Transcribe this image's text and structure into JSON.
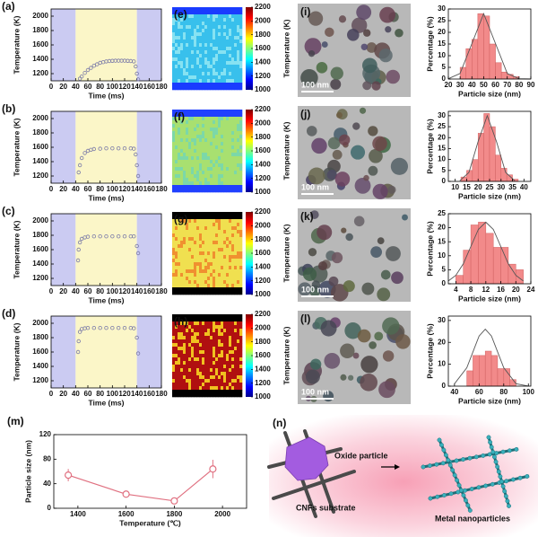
{
  "chart_data": [
    {
      "type": "scatter",
      "panel": "(a)",
      "xlabel": "Time (ms)",
      "ylabel": "Temperature (K)",
      "color": "#7a7aa8",
      "shaded": [
        {
          "range": [
            0,
            40
          ],
          "color": "#cbcbf2"
        },
        {
          "range": [
            40,
            140
          ],
          "color": "#fbf6c8"
        },
        {
          "range": [
            140,
            180
          ],
          "color": "#cbcbf2"
        }
      ],
      "x": [
        47,
        50,
        55,
        60,
        65,
        70,
        75,
        80,
        85,
        90,
        95,
        100,
        105,
        110,
        115,
        120,
        125,
        130,
        135,
        138,
        140,
        142
      ],
      "values": [
        1130,
        1160,
        1210,
        1250,
        1280,
        1310,
        1330,
        1350,
        1360,
        1370,
        1375,
        1378,
        1380,
        1380,
        1380,
        1380,
        1378,
        1375,
        1370,
        1300,
        1200,
        1120
      ],
      "xlim": [
        0,
        180
      ],
      "xticks": [
        0,
        20,
        40,
        60,
        80,
        100,
        120,
        140,
        160,
        180
      ],
      "ylim": [
        1100,
        2100
      ],
      "yticks": [
        1200,
        1400,
        1600,
        1800,
        2000
      ]
    },
    {
      "type": "scatter",
      "panel": "(b)",
      "xlabel": "Time (ms)",
      "ylabel": "Temperature (K)",
      "color": "#7a7aa8",
      "shaded": [
        {
          "range": [
            0,
            40
          ],
          "color": "#cbcbf2"
        },
        {
          "range": [
            40,
            140
          ],
          "color": "#fbf6c8"
        },
        {
          "range": [
            140,
            180
          ],
          "color": "#cbcbf2"
        }
      ],
      "x": [
        45,
        47,
        50,
        55,
        60,
        65,
        70,
        80,
        90,
        100,
        110,
        120,
        130,
        135,
        138,
        140,
        142
      ],
      "values": [
        1250,
        1350,
        1450,
        1520,
        1550,
        1565,
        1575,
        1580,
        1585,
        1585,
        1585,
        1585,
        1585,
        1580,
        1500,
        1350,
        1200
      ],
      "xlim": [
        0,
        180
      ],
      "xticks": [
        0,
        20,
        40,
        60,
        80,
        100,
        120,
        140,
        160,
        180
      ],
      "ylim": [
        1100,
        2100
      ],
      "yticks": [
        1200,
        1400,
        1600,
        1800,
        2000
      ]
    },
    {
      "type": "scatter",
      "panel": "(c)",
      "xlabel": "Time (ms)",
      "ylabel": "Temperature (K)",
      "color": "#7a7aa8",
      "shaded": [
        {
          "range": [
            0,
            40
          ],
          "color": "#cbcbf2"
        },
        {
          "range": [
            40,
            140
          ],
          "color": "#fbf6c8"
        },
        {
          "range": [
            140,
            180
          ],
          "color": "#cbcbf2"
        }
      ],
      "x": [
        44,
        45,
        47,
        50,
        55,
        60,
        70,
        80,
        90,
        100,
        110,
        120,
        130,
        135,
        140,
        142
      ],
      "values": [
        1450,
        1600,
        1700,
        1750,
        1770,
        1780,
        1785,
        1785,
        1785,
        1785,
        1785,
        1785,
        1785,
        1785,
        1650,
        1550
      ],
      "xlim": [
        0,
        180
      ],
      "xticks": [
        0,
        20,
        40,
        60,
        80,
        100,
        120,
        140,
        160,
        180
      ],
      "ylim": [
        1100,
        2100
      ],
      "yticks": [
        1200,
        1400,
        1600,
        1800,
        2000
      ]
    },
    {
      "type": "scatter",
      "panel": "(d)",
      "xlabel": "Time (ms)",
      "ylabel": "Temperature (K)",
      "color": "#7a7aa8",
      "shaded": [
        {
          "range": [
            0,
            40
          ],
          "color": "#cbcbf2"
        },
        {
          "range": [
            40,
            140
          ],
          "color": "#fbf6c8"
        },
        {
          "range": [
            140,
            180
          ],
          "color": "#cbcbf2"
        }
      ],
      "x": [
        44,
        45,
        47,
        50,
        55,
        60,
        70,
        80,
        90,
        100,
        110,
        120,
        130,
        135,
        140,
        142
      ],
      "values": [
        1600,
        1750,
        1880,
        1920,
        1930,
        1935,
        1935,
        1935,
        1935,
        1935,
        1935,
        1935,
        1935,
        1930,
        1800,
        1580
      ],
      "xlim": [
        0,
        180
      ],
      "xticks": [
        0,
        20,
        40,
        60,
        80,
        100,
        120,
        140,
        160,
        180
      ],
      "ylim": [
        1100,
        2100
      ],
      "yticks": [
        1200,
        1400,
        1600,
        1800,
        2000
      ]
    },
    {
      "type": "heatmap",
      "panel": "(e)",
      "zlabel": "Temperature (K)",
      "zlim": [
        1000,
        2200
      ],
      "zticks": [
        1000,
        1200,
        1400,
        1600,
        1800,
        2000,
        2200
      ],
      "color": "#38c0ec",
      "speckle_color": "#86e2f2",
      "edge_color": "#1a3cff"
    },
    {
      "type": "heatmap",
      "panel": "(f)",
      "zlabel": "Temperature (K)",
      "zlim": [
        1000,
        2200
      ],
      "zticks": [
        1000,
        1200,
        1400,
        1600,
        1800,
        2000,
        2200
      ],
      "color": "#a8e070",
      "speckle_color": "#7cd8a8",
      "edge_color": "#2040ff"
    },
    {
      "type": "heatmap",
      "panel": "(g)",
      "zlabel": "Temperature (K)",
      "zlim": [
        1000,
        2200
      ],
      "zticks": [
        1000,
        1200,
        1400,
        1600,
        1800,
        2000,
        2200
      ],
      "color": "#f0e050",
      "speckle_color": "#f09030",
      "edge_color": "#000000"
    },
    {
      "type": "heatmap",
      "panel": "(h)",
      "zlabel": "Temperature (K)",
      "zlim": [
        1000,
        2200
      ],
      "zticks": [
        1000,
        1200,
        1400,
        1600,
        1800,
        2000,
        2200
      ],
      "color": "#b01010",
      "speckle_color": "#f0c020",
      "edge_color": "#000000"
    },
    {
      "type": "histogram",
      "xlabel": "Particle size (nm)",
      "ylabel": "Percentage (%)",
      "color": "#f28a8a",
      "bins": [
        30,
        35,
        40,
        45,
        50,
        55,
        60,
        65,
        70,
        75,
        80
      ],
      "values": [
        5,
        13,
        17,
        28,
        27,
        15,
        7,
        3,
        2,
        1
      ],
      "fit": {
        "x": [
          20,
          30,
          40,
          50,
          60,
          70,
          80,
          90
        ],
        "values": [
          0.1,
          2.4,
          15.2,
          28,
          15.2,
          2.4,
          0.1,
          0
        ],
        "color": "#555555"
      },
      "xlim": [
        20,
        90
      ],
      "xticks": [
        20,
        30,
        40,
        50,
        60,
        70,
        80,
        90
      ],
      "ylim": [
        0,
        30
      ],
      "yticks": [
        0,
        5,
        10,
        15,
        20,
        25,
        30
      ]
    },
    {
      "type": "histogram",
      "xlabel": "Particle size (nm)",
      "ylabel": "Percentage (%)",
      "color": "#f28a8a",
      "bins": [
        12.5,
        15,
        17.5,
        20,
        22.5,
        25,
        27.5,
        30,
        32.5,
        35,
        37.5
      ],
      "values": [
        2,
        5,
        10,
        22,
        31,
        25,
        12,
        6,
        3,
        1
      ],
      "fit": {
        "x": [
          12,
          16,
          20,
          24,
          28,
          32,
          36
        ],
        "values": [
          0.3,
          4.1,
          18.2,
          30,
          18.2,
          4.1,
          0.3
        ],
        "color": "#555555"
      },
      "xlim": [
        7,
        43
      ],
      "xticks": [
        10,
        15,
        20,
        25,
        30,
        35,
        40
      ],
      "ylim": [
        0,
        32
      ],
      "yticks": [
        0,
        5,
        10,
        15,
        20,
        25,
        30
      ]
    },
    {
      "type": "histogram",
      "xlabel": "Particle size (nm)",
      "ylabel": "Percentage (%)",
      "color": "#f28a8a",
      "bins": [
        4,
        6,
        8,
        10,
        12,
        14,
        16,
        18,
        20,
        22
      ],
      "values": [
        3,
        12,
        21,
        22,
        18,
        13,
        13,
        7,
        5
      ],
      "fit": {
        "x": [
          2,
          4,
          6,
          8,
          10,
          12,
          14,
          16,
          18,
          20,
          22
        ],
        "values": [
          1.0,
          3.0,
          7.1,
          13.3,
          19.4,
          22,
          19.4,
          13.3,
          7.1,
          3.0,
          1.0
        ],
        "color": "#555555"
      },
      "xlim": [
        2,
        24
      ],
      "xticks": [
        4,
        8,
        12,
        16,
        20,
        24
      ],
      "ylim": [
        0,
        25
      ],
      "yticks": [
        0,
        5,
        10,
        15,
        20,
        25
      ]
    },
    {
      "type": "histogram",
      "xlabel": "Particle size (nm)",
      "ylabel": "Percentage (%)",
      "color": "#f28a8a",
      "bins": [
        50,
        55,
        60,
        65,
        70,
        75,
        80,
        85,
        90
      ],
      "values": [
        7,
        14,
        14,
        16,
        14,
        8,
        8,
        3
      ],
      "fit": {
        "x": [
          40,
          50,
          60,
          65,
          70,
          80,
          90,
          100
        ],
        "values": [
          1.1,
          8.4,
          22.9,
          26,
          22.9,
          8.4,
          1.1,
          0.06
        ],
        "color": "#555555"
      },
      "xlim": [
        35,
        102
      ],
      "xticks": [
        40,
        60,
        80,
        100
      ],
      "ylim": [
        0,
        32
      ],
      "yticks": [
        0,
        10,
        20,
        30
      ]
    },
    {
      "type": "line",
      "panel": "(m)",
      "xlabel": "Temperature (℃)",
      "ylabel": "Particle size (nm)",
      "color": "#e07080",
      "x": [
        1360,
        1600,
        1800,
        1960
      ],
      "values": [
        54,
        23,
        12,
        64
      ],
      "errors": [
        10,
        5,
        3,
        15
      ],
      "xlim": [
        1300,
        2100
      ],
      "xticks": [
        1400,
        1600,
        1800,
        2000
      ],
      "ylim": [
        0,
        120
      ],
      "yticks": [
        0,
        40,
        80,
        120
      ]
    }
  ],
  "images": [
    {
      "panel": "(i)",
      "scale_bar": "100 nm"
    },
    {
      "panel": "(j)",
      "scale_bar": "100 nm"
    },
    {
      "panel": "(k)",
      "scale_bar": "100 nm"
    },
    {
      "panel": "(l)",
      "scale_bar": "100 nm"
    }
  ],
  "diagram": {
    "panel": "(n)",
    "oxide_particle": "Oxide particle",
    "substrate": "CNFs substrate",
    "metal": "Metal nanoparticles"
  }
}
